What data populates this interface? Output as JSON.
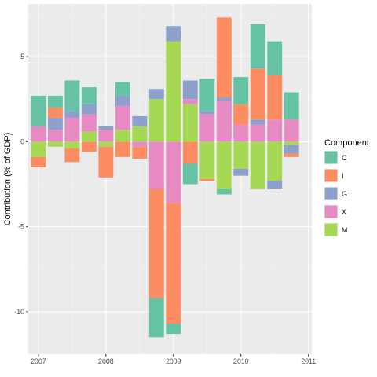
{
  "chart_data": {
    "type": "bar",
    "stacked": true,
    "ylabel": "Contribution (% of GDP)",
    "xlabel": "",
    "xlim": [
      2006.85,
      2011.05
    ],
    "ylim": [
      -12.5,
      8.1
    ],
    "x_ticks": [
      2007,
      2008,
      2009,
      2010,
      2011
    ],
    "y_ticks": [
      -10,
      -5,
      0,
      5
    ],
    "grid": true,
    "legend_position": "right",
    "legend": {
      "title": "Component",
      "items": [
        {
          "key": "C",
          "label": "C",
          "color": "#66C2A5"
        },
        {
          "key": "I",
          "label": "I",
          "color": "#FC8D62"
        },
        {
          "key": "G",
          "label": "G",
          "color": "#8DA0CB"
        },
        {
          "key": "X",
          "label": "X",
          "color": "#E78AC3"
        },
        {
          "key": "M",
          "label": "M",
          "color": "#A6D854"
        }
      ]
    },
    "stack_order_positive": [
      "M",
      "X",
      "G",
      "I",
      "C"
    ],
    "stack_order_negative": [
      "M",
      "X",
      "G",
      "I",
      "C"
    ],
    "bar_width": 0.22,
    "x": [
      2007.0,
      2007.25,
      2007.5,
      2007.75,
      2008.0,
      2008.25,
      2008.5,
      2008.75,
      2009.0,
      2009.25,
      2009.5,
      2009.75,
      2010.0,
      2010.25,
      2010.5,
      2010.75
    ],
    "series": [
      {
        "name": "C",
        "values": [
          1.8,
          0.7,
          1.8,
          1.0,
          0.0,
          0.8,
          0.0,
          -2.3,
          -0.6,
          -1.2,
          1.9,
          -0.3,
          1.6,
          2.6,
          2.0,
          1.6
        ]
      },
      {
        "name": "I",
        "values": [
          -0.6,
          0.6,
          -0.8,
          -0.6,
          -1.8,
          -0.9,
          -0.7,
          -6.4,
          -7.1,
          -1.3,
          -0.1,
          4.7,
          1.2,
          3.0,
          2.6,
          -0.2
        ]
      },
      {
        "name": "G",
        "values": [
          0.0,
          0.7,
          0.4,
          0.6,
          0.2,
          0.6,
          0.6,
          0.6,
          0.9,
          1.1,
          0.2,
          0.2,
          -0.4,
          0.3,
          -0.5,
          -0.5
        ]
      },
      {
        "name": "X",
        "values": [
          0.9,
          0.7,
          1.4,
          1.0,
          0.7,
          1.4,
          -0.3,
          -2.8,
          -3.6,
          0.3,
          1.6,
          2.4,
          1.0,
          1.0,
          1.3,
          1.3
        ]
      },
      {
        "name": "M",
        "values": [
          -0.9,
          -0.3,
          -0.4,
          0.6,
          -0.3,
          0.7,
          0.9,
          2.5,
          5.9,
          2.2,
          -2.2,
          -2.8,
          -1.6,
          -2.8,
          -2.3,
          -0.2
        ]
      }
    ]
  }
}
